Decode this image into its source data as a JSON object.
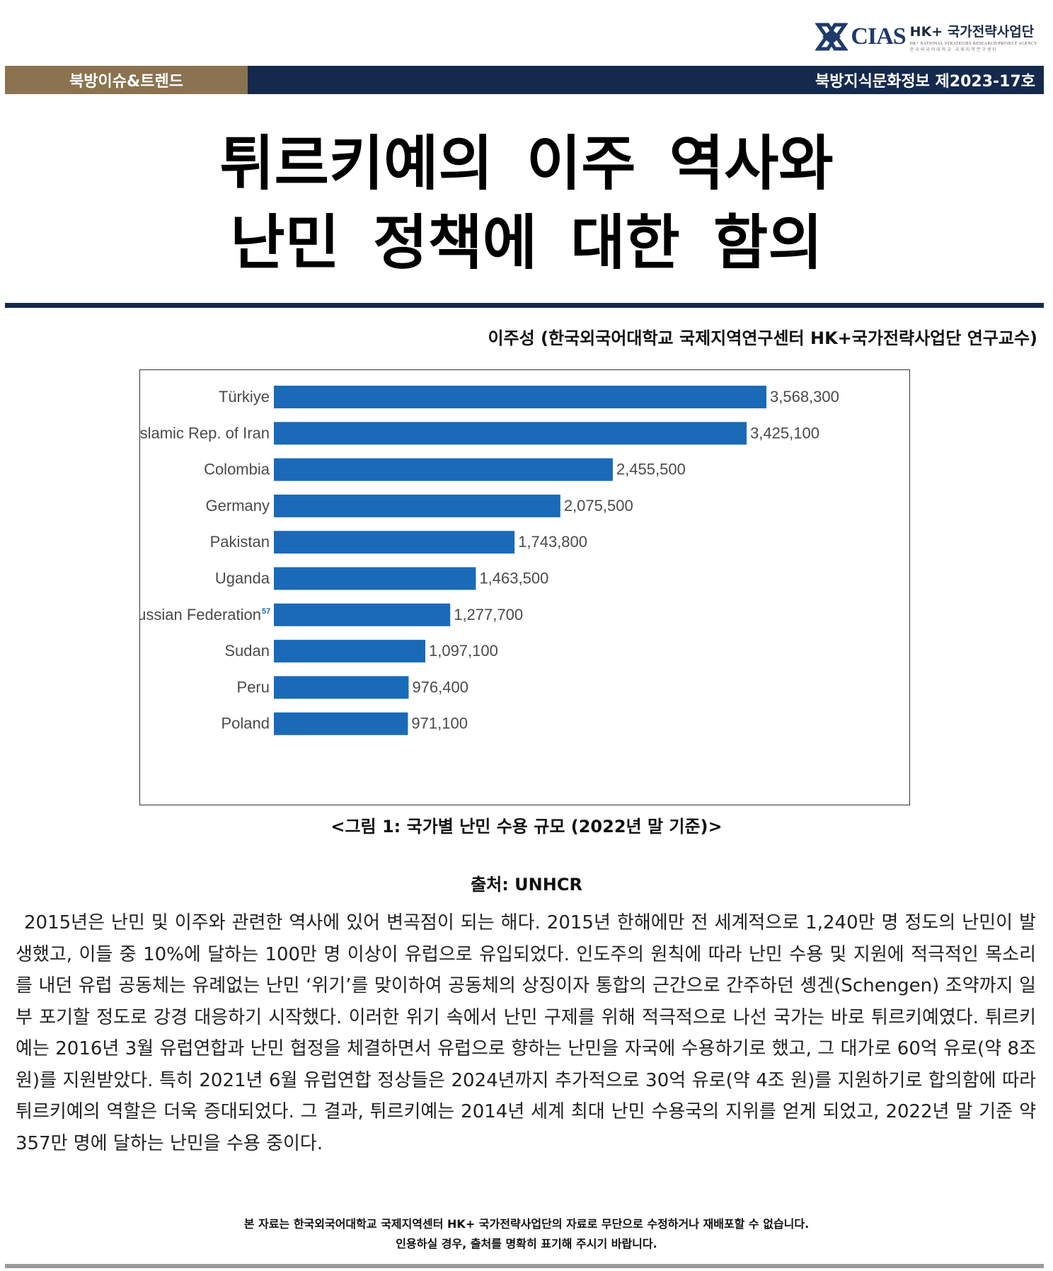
{
  "header": {
    "logo_text": "CIAS",
    "logo_title": "HK+ 국가전략사업단",
    "logo_sub": "HK+ NATIONAL STRATEGIES RESEARCH PROJECT AGENCY",
    "logo_sub_kr": "한국외국어대학교 국제지역연구센터",
    "category": "북방이슈&트렌드",
    "issue": "북방지식문화정보 제2023-17호",
    "colors": {
      "brown": "#8b7250",
      "navy": "#15294d",
      "bar_blue": "#1a6ab8"
    }
  },
  "title": {
    "line1": "튀르키예의 이주 역사와",
    "line2": "난민 정책에 대한 함의"
  },
  "author": "이주성 (한국외국어대학교 국제지역연구센터 HK+국가전략사업단 연구교수)",
  "chart_data": {
    "type": "bar",
    "orientation": "horizontal",
    "categories": [
      "Türkiye",
      "Islamic Rep. of Iran",
      "Colombia",
      "Germany",
      "Pakistan",
      "Uganda",
      "Russian Federation",
      "Sudan",
      "Peru",
      "Poland"
    ],
    "values": [
      3568300,
      3425100,
      2455500,
      2075500,
      1743800,
      1463500,
      1277700,
      1097100,
      976400,
      971100
    ],
    "value_labels": [
      "3,568,300",
      "3,425,100",
      "2,455,500",
      "2,075,500",
      "1,743,800",
      "1,463,500",
      "1,277,700",
      "1,097,100",
      "976,400",
      "971,100"
    ],
    "footnote_marker": {
      "category": "Russian Federation",
      "text": "57"
    },
    "title": "",
    "xlabel": "",
    "ylabel": "",
    "xlim": [
      0,
      3568300
    ],
    "grid": false,
    "legend": "none"
  },
  "figure": {
    "caption": "<그림 1: 국가별 난민 수용 규모 (2022년 말 기준)>",
    "source": "출처: UNHCR"
  },
  "body": "2015년은 난민 및 이주와 관련한 역사에 있어 변곡점이 되는 해다. 2015년 한해에만 전 세계적으로 1,240만 명 정도의 난민이 발생했고, 이들 중 10%에 달하는 100만 명 이상이 유럽으로 유입되었다. 인도주의 원칙에 따라 난민 수용 및 지원에 적극적인 목소리를 내던 유럽 공동체는 유례없는 난민 ‘위기’를 맞이하여 공동체의 상징이자 통합의 근간으로 간주하던 솅겐(Schengen) 조약까지 일부 포기할 정도로 강경 대응하기 시작했다. 이러한 위기 속에서 난민 구제를 위해 적극적으로 나선 국가는 바로 튀르키예였다. 튀르키예는 2016년 3월 유럽연합과 난민 협정을 체결하면서 유럽으로 향하는 난민을 자국에 수용하기로 했고, 그 대가로 60억 유로(약 8조 원)를 지원받았다. 특히 2021년 6월 유럽연합 정상들은 2024년까지 추가적으로 30억 유로(약 4조 원)를 지원하기로 합의함에 따라 튀르키예의 역할은 더욱 증대되었다. 그 결과, 튀르키예는 2014년 세계 최대 난민 수용국의 지위를 얻게 되었고, 2022년 말 기준 약 357만 명에 달하는 난민을 수용 중이다.",
  "footer": {
    "line1": "본 자료는 한국외국어대학교 국제지역센터 HK+ 국가전략사업단의 자료로 무단으로 수정하거나 재배포할 수 없습니다.",
    "line2": "인용하실 경우, 출처를 명확히 표기해 주시기 바랍니다."
  }
}
